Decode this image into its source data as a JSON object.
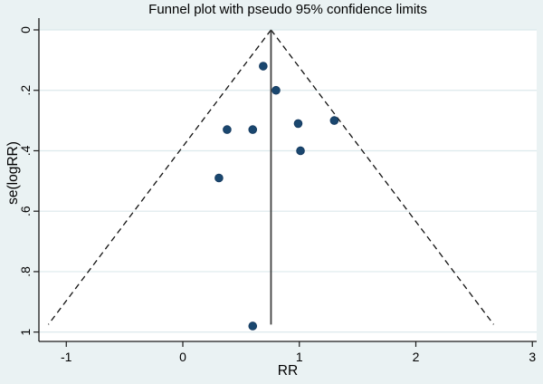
{
  "chart_data": {
    "type": "scatter",
    "subtype": "funnel-plot",
    "title": "Funnel plot with pseudo 95% confidence limits",
    "xlabel": "RR",
    "ylabel": "se(logRR)",
    "xlim": [
      -1.235,
      3.037
    ],
    "ylim": [
      0,
      1.031
    ],
    "y_axis_inverted": true,
    "grid": "horizontal-only",
    "legend": "none",
    "x_ticks": [
      {
        "value": -1,
        "label": "-1"
      },
      {
        "value": 0,
        "label": "0"
      },
      {
        "value": 1,
        "label": "1"
      },
      {
        "value": 2,
        "label": "2"
      },
      {
        "value": 3,
        "label": "3"
      }
    ],
    "y_ticks": [
      {
        "value": 0,
        "label": "0"
      },
      {
        "value": 0.2,
        "label": ".2"
      },
      {
        "value": 0.4,
        "label": ".4"
      },
      {
        "value": 0.6,
        "label": ".6"
      },
      {
        "value": 0.8,
        "label": ".8"
      },
      {
        "value": 1,
        "label": "1"
      }
    ],
    "series": [
      {
        "name": "studies",
        "marker": "circle",
        "color": "#1a476f",
        "points": [
          {
            "rr": 0.69,
            "se": 0.12
          },
          {
            "rr": 0.8,
            "se": 0.2
          },
          {
            "rr": 1.3,
            "se": 0.3
          },
          {
            "rr": 0.99,
            "se": 0.31
          },
          {
            "rr": 0.38,
            "se": 0.33
          },
          {
            "rr": 0.6,
            "se": 0.33
          },
          {
            "rr": 1.01,
            "se": 0.4
          },
          {
            "rr": 0.31,
            "se": 0.49
          },
          {
            "rr": 0.6,
            "se": 0.98
          }
        ]
      }
    ],
    "pooled_effect_rr": 0.757,
    "center_line": {
      "x": 0.757,
      "style": "solid",
      "color": "#3f3f3f"
    },
    "confidence_funnel": {
      "multiplier": 1.96,
      "max_se": 0.975,
      "line_style": "dashed",
      "color": "#111111"
    },
    "colors": {
      "figure_background": "#eaf2f3",
      "plot_background": "#ffffff",
      "gridline": "#dce9ec",
      "axis": "#1a1a1a",
      "marker_fill": "#1a476f",
      "marker_edge": "#15395e",
      "text": "#000000"
    }
  }
}
